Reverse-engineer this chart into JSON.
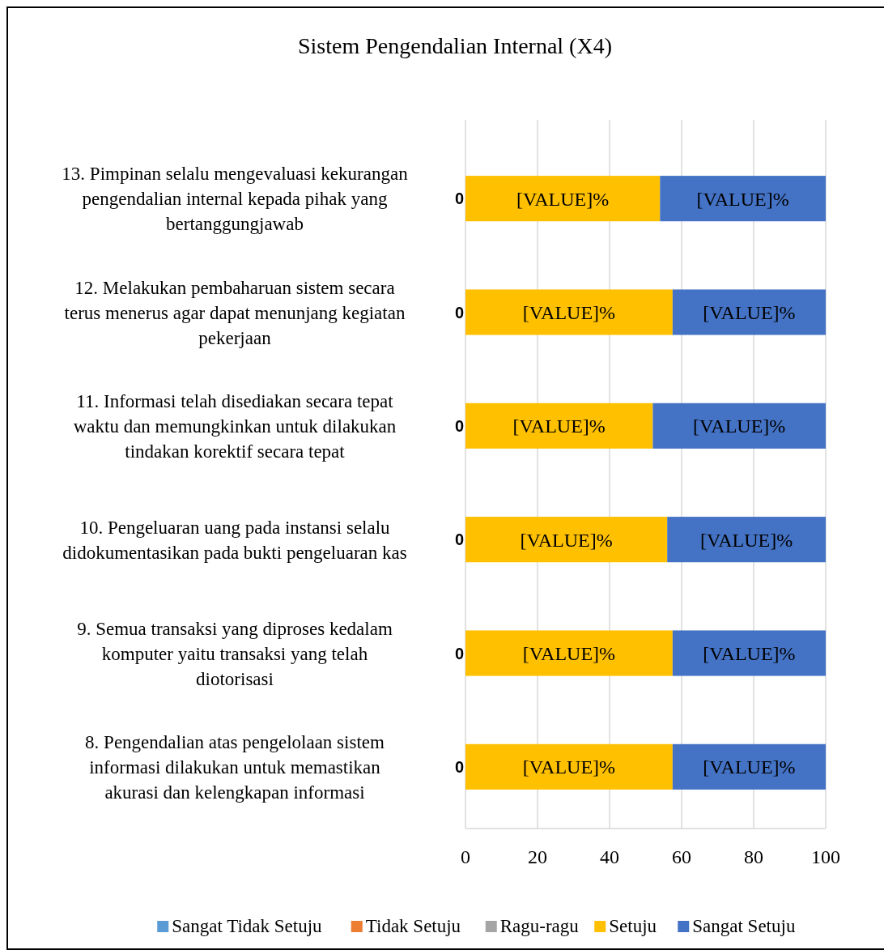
{
  "chart_data": {
    "type": "bar",
    "orientation": "horizontal",
    "stacked": true,
    "title": "Sistem Pengendalian Internal (X4)",
    "categories": [
      "13. Pimpinan selalu mengevaluasi kekurangan pengendalian internal kepada pihak yang bertanggungjawab",
      "12. Melakukan pembaharuan sistem secara terus menerus agar dapat menunjang kegiatan pekerjaan",
      "11. Informasi telah disediakan secara tepat waktu dan memungkinkan untuk dilakukan tindakan korektif secara tepat",
      "10. Pengeluaran uang pada instansi selalu didokumentasikan pada bukti pengeluaran kas",
      "9. Semua transaksi yang diproses kedalam komputer yaitu transaksi yang telah diotorisasi",
      "8. Pengendalian atas pengelolaan sistem informasi dilakukan untuk memastikan akurasi dan kelengkapan informasi"
    ],
    "series": [
      {
        "name": "Sangat Tidak Setuju",
        "color": "#5b9bd5",
        "values": [
          0,
          0,
          0,
          0,
          0,
          0
        ]
      },
      {
        "name": "Tidak Setuju",
        "color": "#ed7d31",
        "values": [
          0,
          0,
          0,
          0,
          0,
          0
        ]
      },
      {
        "name": "Ragu-ragu",
        "color": "#a5a5a5",
        "values": [
          0,
          0,
          0,
          0,
          0,
          0
        ]
      },
      {
        "name": "Setuju",
        "color": "#ffc000",
        "values": [
          54,
          57.5,
          52,
          56,
          57.5,
          57.5
        ],
        "value_labels": [
          "[VALUE]%",
          "[VALUE]%",
          "[VALUE]%",
          "[VALUE]%",
          "[VALUE]%",
          "[VALUE]%"
        ]
      },
      {
        "name": "Sangat Setuju",
        "color": "#4472c4",
        "values": [
          46,
          42.5,
          48,
          44,
          42.5,
          42.5
        ],
        "value_labels": [
          "[VALUE]%",
          "[VALUE]%",
          "[VALUE]%",
          "[VALUE]%",
          "[VALUE]%",
          "[VALUE]%"
        ]
      }
    ],
    "annotations": [
      "0",
      "0",
      "0",
      "0",
      "0",
      "0"
    ],
    "xlim": [
      0,
      100
    ],
    "xticks": [
      0,
      20,
      40,
      60,
      80,
      100
    ],
    "grid": "x",
    "legend": "bottom"
  }
}
